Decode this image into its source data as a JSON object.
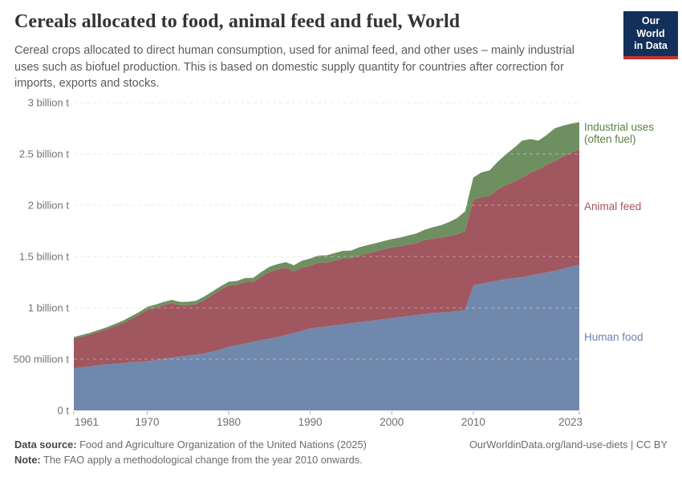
{
  "header": {
    "title": "Cereals allocated to food, animal feed and fuel, World",
    "subtitle_lines": [
      "Cereal crops allocated to direct human consumption, used for animal feed, and other uses – mainly industrial",
      "uses such as biofuel production. This is based on domestic supply quantity for countries after correction for",
      "imports, exports and stocks."
    ],
    "logo": {
      "line1": "Our World",
      "line2": "in Data",
      "bg": "#12305a",
      "bar": "#c5342f"
    }
  },
  "chart_data": {
    "type": "area",
    "stacked": true,
    "title": "Cereals allocated to food, animal feed and fuel, World",
    "unit": "tonnes",
    "ylabel": "",
    "xlabel": "",
    "ylim": [
      0,
      3
    ],
    "grid": "dashed",
    "legend_position": "right",
    "x": [
      1961,
      1962,
      1963,
      1964,
      1965,
      1966,
      1967,
      1968,
      1969,
      1970,
      1971,
      1972,
      1973,
      1974,
      1975,
      1976,
      1977,
      1978,
      1979,
      1980,
      1981,
      1982,
      1983,
      1984,
      1985,
      1986,
      1987,
      1988,
      1989,
      1990,
      1991,
      1992,
      1993,
      1994,
      1995,
      1996,
      1997,
      1998,
      1999,
      2000,
      2001,
      2002,
      2003,
      2004,
      2005,
      2006,
      2007,
      2008,
      2009,
      2010,
      2011,
      2012,
      2013,
      2014,
      2015,
      2016,
      2017,
      2018,
      2019,
      2020,
      2021,
      2022,
      2023
    ],
    "series": [
      {
        "name": "Human food",
        "color": "#7188ad",
        "values_unit": "billion t",
        "values": [
          0.41,
          0.42,
          0.43,
          0.44,
          0.45,
          0.455,
          0.46,
          0.47,
          0.475,
          0.48,
          0.49,
          0.505,
          0.515,
          0.525,
          0.535,
          0.545,
          0.555,
          0.575,
          0.595,
          0.62,
          0.635,
          0.65,
          0.67,
          0.685,
          0.7,
          0.715,
          0.735,
          0.755,
          0.775,
          0.8,
          0.81,
          0.82,
          0.83,
          0.84,
          0.85,
          0.86,
          0.87,
          0.88,
          0.89,
          0.9,
          0.91,
          0.92,
          0.93,
          0.94,
          0.95,
          0.955,
          0.96,
          0.97,
          0.98,
          1.22,
          1.235,
          1.25,
          1.265,
          1.28,
          1.29,
          1.3,
          1.315,
          1.33,
          1.345,
          1.36,
          1.38,
          1.4,
          1.42
        ]
      },
      {
        "name": "Animal feed",
        "color": "#a1575f",
        "values_unit": "billion t",
        "values": [
          0.29,
          0.3,
          0.31,
          0.325,
          0.34,
          0.365,
          0.39,
          0.42,
          0.455,
          0.5,
          0.51,
          0.52,
          0.53,
          0.5,
          0.49,
          0.49,
          0.52,
          0.55,
          0.58,
          0.6,
          0.59,
          0.6,
          0.58,
          0.62,
          0.65,
          0.66,
          0.655,
          0.6,
          0.62,
          0.61,
          0.63,
          0.62,
          0.63,
          0.64,
          0.63,
          0.65,
          0.66,
          0.67,
          0.68,
          0.69,
          0.69,
          0.695,
          0.7,
          0.72,
          0.725,
          0.73,
          0.74,
          0.745,
          0.77,
          0.83,
          0.845,
          0.84,
          0.89,
          0.915,
          0.94,
          0.97,
          1.0,
          1.02,
          1.05,
          1.07,
          1.095,
          1.115,
          1.12
        ]
      },
      {
        "name": "Industrial uses (often fuel)",
        "color": "#6e9061",
        "values_unit": "billion t",
        "values": [
          0.015,
          0.016,
          0.017,
          0.018,
          0.02,
          0.022,
          0.024,
          0.026,
          0.028,
          0.03,
          0.031,
          0.032,
          0.033,
          0.033,
          0.034,
          0.034,
          0.035,
          0.035,
          0.035,
          0.035,
          0.037,
          0.04,
          0.042,
          0.045,
          0.05,
          0.052,
          0.055,
          0.06,
          0.065,
          0.07,
          0.07,
          0.072,
          0.074,
          0.076,
          0.078,
          0.08,
          0.08,
          0.08,
          0.08,
          0.08,
          0.085,
          0.09,
          0.095,
          0.1,
          0.11,
          0.12,
          0.135,
          0.16,
          0.19,
          0.22,
          0.24,
          0.25,
          0.27,
          0.3,
          0.33,
          0.36,
          0.33,
          0.28,
          0.29,
          0.32,
          0.3,
          0.28,
          0.27
        ]
      }
    ],
    "y_ticks": [
      {
        "value": 0,
        "label": "0 t"
      },
      {
        "value": 0.5,
        "label": "500 million t"
      },
      {
        "value": 1,
        "label": "1 billion t"
      },
      {
        "value": 1.5,
        "label": "1.5 billion t"
      },
      {
        "value": 2,
        "label": "2 billion t"
      },
      {
        "value": 2.5,
        "label": "2.5 billion t"
      },
      {
        "value": 3,
        "label": "3 billion t"
      }
    ],
    "x_ticks": [
      1961,
      1970,
      1980,
      1990,
      2000,
      2010,
      2023
    ]
  },
  "legend": [
    {
      "label": "Industrial uses (often fuel)",
      "color": "#588144"
    },
    {
      "label": "Animal feed",
      "color": "#a6545e"
    },
    {
      "label": "Human food",
      "color": "#6784b6"
    }
  ],
  "footer": {
    "data_source_label": "Data source:",
    "data_source": "Food and Agriculture Organization of the United Nations (2025)",
    "note_label": "Note:",
    "note": "The FAO apply a methodological change from the year 2010 onwards.",
    "citation": "OurWorldinData.org/land-use-diets | CC BY"
  }
}
